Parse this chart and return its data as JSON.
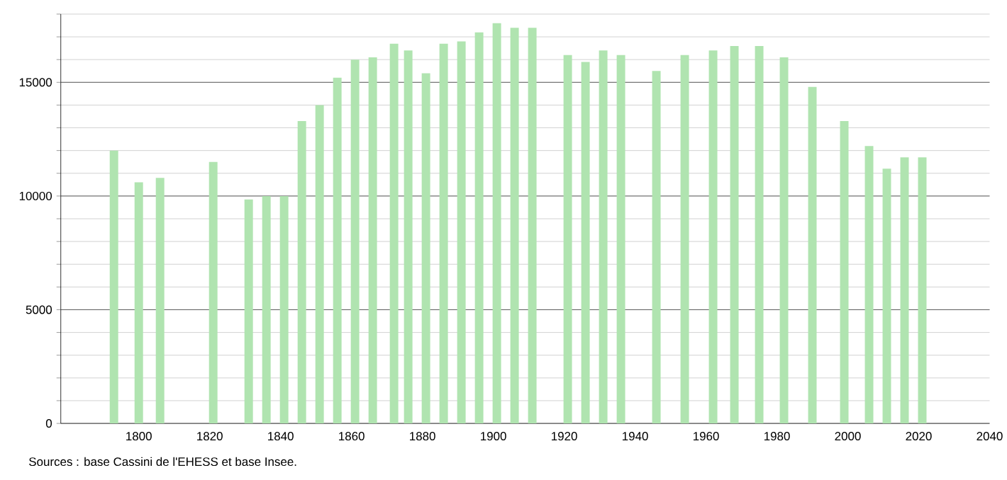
{
  "chart_data": {
    "type": "bar",
    "x": [
      1793,
      1800,
      1806,
      1821,
      1831,
      1836,
      1841,
      1846,
      1851,
      1856,
      1861,
      1866,
      1872,
      1876,
      1881,
      1886,
      1891,
      1896,
      1901,
      1906,
      1911,
      1921,
      1926,
      1931,
      1936,
      1946,
      1954,
      1962,
      1968,
      1975,
      1982,
      1990,
      1999,
      2006,
      2011,
      2016,
      2021
    ],
    "values": [
      12000,
      10600,
      10800,
      11500,
      9850,
      10000,
      10000,
      13300,
      14000,
      15200,
      16000,
      16100,
      16700,
      16400,
      15400,
      16700,
      16800,
      17200,
      17600,
      17400,
      17400,
      16200,
      15900,
      16400,
      16200,
      15500,
      16200,
      16400,
      16600,
      16600,
      16100,
      14800,
      13300,
      12200,
      11200,
      11700,
      11700
    ],
    "color": "#b0e4b0",
    "xlim": [
      1778,
      2040
    ],
    "xticks": [
      1800,
      1820,
      1840,
      1860,
      1880,
      1900,
      1920,
      1940,
      1960,
      1980,
      2000,
      2020,
      2040
    ],
    "ylim": [
      0,
      18000
    ],
    "yticks": [
      0,
      {
        "value": 1000,
        "label": null
      },
      {
        "value": 2000,
        "label": null
      },
      {
        "value": 3000,
        "label": null
      },
      {
        "value": 4000,
        "label": null
      },
      5000,
      {
        "value": 6000,
        "label": null
      },
      {
        "value": 7000,
        "label": null
      },
      {
        "value": 8000,
        "label": null
      },
      {
        "value": 9000,
        "label": null
      },
      10000,
      {
        "value": 11000,
        "label": null
      },
      {
        "value": 12000,
        "label": null
      },
      {
        "value": 13000,
        "label": null
      },
      {
        "value": 14000,
        "label": null
      },
      15000,
      {
        "value": 16000,
        "label": null
      },
      {
        "value": 17000,
        "label": null
      },
      {
        "value": 18000,
        "label": null
      }
    ],
    "grid": "y",
    "annotations": [
      "Sources : base Cassini de l'EHESS et base Insee."
    ]
  }
}
